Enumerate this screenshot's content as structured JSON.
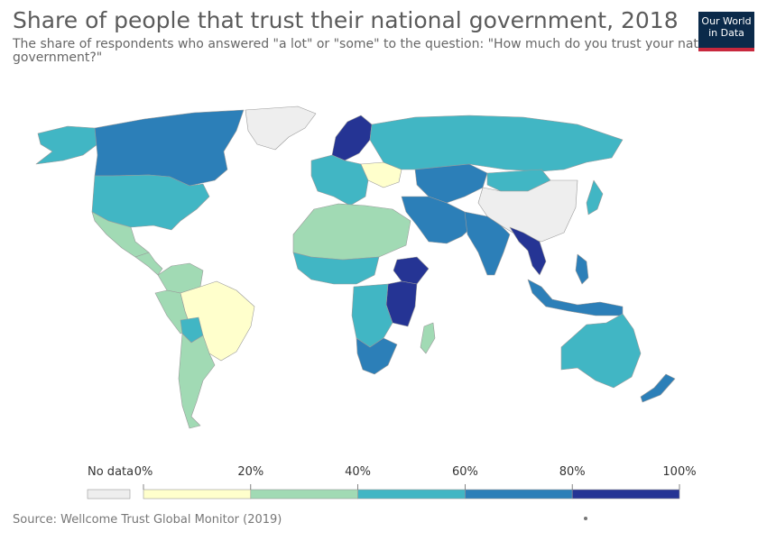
{
  "title": "Share of people that trust their national government, 2018",
  "subtitle": "The share of respondents who answered \"a lot\" or \"some\" to the question: \"How much do you trust your national government?\"",
  "logo": {
    "line1": "Our World",
    "line2": "in Data",
    "bg": "#0b2a4a",
    "accent": "#c8283d"
  },
  "legend": {
    "no_data_label": "No data",
    "no_data_color": "#eeeeee",
    "ticks": [
      "0%",
      "20%",
      "40%",
      "60%",
      "80%",
      "100%"
    ],
    "bins": [
      {
        "from": 0,
        "to": 20,
        "color": "#ffffcc"
      },
      {
        "from": 20,
        "to": 40,
        "color": "#a1dab4"
      },
      {
        "from": 40,
        "to": 60,
        "color": "#41b6c4"
      },
      {
        "from": 60,
        "to": 80,
        "color": "#2c7fb8"
      },
      {
        "from": 80,
        "to": 100,
        "color": "#253494"
      }
    ]
  },
  "source": "Source: Wellcome Trust Global Monitor (2019)",
  "chart_data": {
    "type": "choropleth",
    "unit": "%",
    "scale": [
      0,
      100
    ],
    "regions": [
      {
        "id": "greenland",
        "bin": "no-data"
      },
      {
        "id": "alaska",
        "bin": "40-60"
      },
      {
        "id": "canada",
        "bin": "60-80"
      },
      {
        "id": "usa",
        "bin": "40-60"
      },
      {
        "id": "mexico",
        "bin": "20-40"
      },
      {
        "id": "central-america",
        "bin": "20-40"
      },
      {
        "id": "colombia-venezuela",
        "bin": "20-40"
      },
      {
        "id": "peru",
        "bin": "20-40"
      },
      {
        "id": "brazil",
        "bin": "0-20"
      },
      {
        "id": "bolivia",
        "bin": "40-60"
      },
      {
        "id": "argentina-chile",
        "bin": "20-40"
      },
      {
        "id": "western-europe",
        "bin": "40-60"
      },
      {
        "id": "scandinavia",
        "bin": "80-100"
      },
      {
        "id": "eastern-europe",
        "bin": "0-20"
      },
      {
        "id": "russia",
        "bin": "40-60"
      },
      {
        "id": "central-asia",
        "bin": "60-80"
      },
      {
        "id": "middle-east",
        "bin": "60-80"
      },
      {
        "id": "north-africa",
        "bin": "20-40"
      },
      {
        "id": "west-africa",
        "bin": "40-60"
      },
      {
        "id": "ethiopia",
        "bin": "80-100"
      },
      {
        "id": "east-africa",
        "bin": "80-100"
      },
      {
        "id": "southern-africa",
        "bin": "40-60"
      },
      {
        "id": "south-africa",
        "bin": "60-80"
      },
      {
        "id": "india",
        "bin": "60-80"
      },
      {
        "id": "southeast-asia",
        "bin": "80-100"
      },
      {
        "id": "china",
        "bin": "no-data"
      },
      {
        "id": "mongolia",
        "bin": "40-60"
      },
      {
        "id": "japan",
        "bin": "40-60"
      },
      {
        "id": "indonesia",
        "bin": "60-80"
      },
      {
        "id": "philippines",
        "bin": "60-80"
      },
      {
        "id": "australia",
        "bin": "40-60"
      },
      {
        "id": "new-zealand",
        "bin": "60-80"
      },
      {
        "id": "madagascar",
        "bin": "20-40"
      }
    ]
  }
}
